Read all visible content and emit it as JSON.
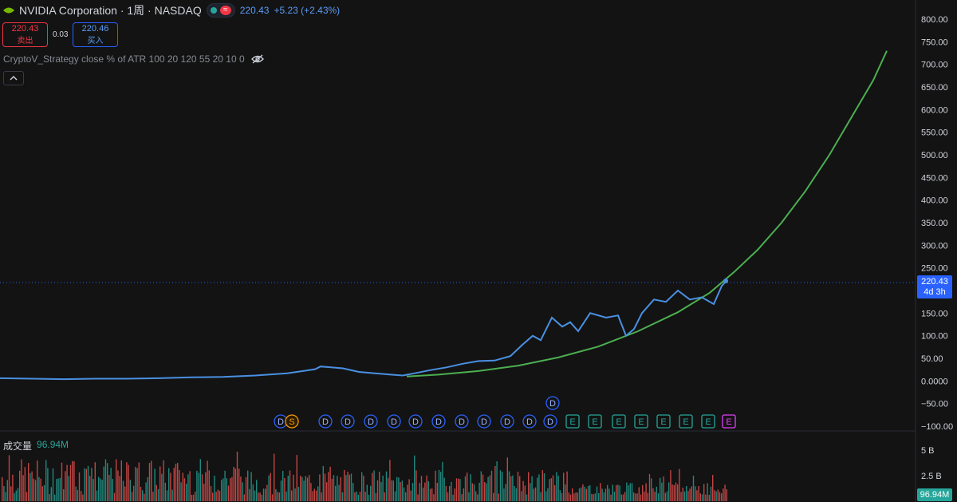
{
  "header": {
    "title": "NVIDIA Corporation · 1周 · NASDAQ",
    "wave_symbol": "≈",
    "price": "220.43",
    "change": "+5.23 (+2.43%)"
  },
  "quote": {
    "sell_price": "220.43",
    "sell_label": "卖出",
    "spread": "0.03",
    "buy_price": "220.46",
    "buy_label": "买入"
  },
  "indicator": {
    "label": "CryptoV_Strategy close % of ATR 100 20 120 55 20 10 0"
  },
  "volume": {
    "label": "成交量",
    "value": "96.94M",
    "axis_ticks": [
      "5 B",
      "2.5 B"
    ]
  },
  "price_tag": {
    "price": "220.43",
    "countdown": "4d 3h"
  },
  "colors": {
    "background": "#131313",
    "price_line": "#4a90e2",
    "curve": "#4caf50",
    "volume_up": "#26a69a",
    "volume_down": "#ef5350",
    "marker_d": "#2962ff",
    "marker_s": "#ff9800",
    "marker_e": "#26a69a",
    "marker_e_last": "#e040fb"
  },
  "chart_data": {
    "type": "line",
    "y_ticks": [
      "800.00",
      "750.00",
      "700.00",
      "650.00",
      "600.00",
      "550.00",
      "500.00",
      "450.00",
      "400.00",
      "350.00",
      "300.00",
      "250.00",
      "200.00",
      "150.00",
      "100.00",
      "50.00",
      "0.0000",
      "−50.00",
      "−100.00"
    ],
    "ylim": [
      -100,
      800
    ],
    "price_series": [
      [
        0,
        6
      ],
      [
        40,
        5
      ],
      [
        80,
        4
      ],
      [
        120,
        5
      ],
      [
        160,
        5
      ],
      [
        200,
        6
      ],
      [
        240,
        8
      ],
      [
        280,
        9
      ],
      [
        320,
        12
      ],
      [
        360,
        17
      ],
      [
        380,
        22
      ],
      [
        395,
        26
      ],
      [
        402,
        32
      ],
      [
        415,
        30
      ],
      [
        430,
        28
      ],
      [
        450,
        20
      ],
      [
        470,
        17
      ],
      [
        490,
        14
      ],
      [
        505,
        12
      ],
      [
        520,
        17
      ],
      [
        540,
        24
      ],
      [
        560,
        30
      ],
      [
        580,
        38
      ],
      [
        600,
        44
      ],
      [
        620,
        45
      ],
      [
        640,
        55
      ],
      [
        655,
        80
      ],
      [
        668,
        100
      ],
      [
        678,
        90
      ],
      [
        692,
        140
      ],
      [
        705,
        120
      ],
      [
        715,
        130
      ],
      [
        725,
        110
      ],
      [
        740,
        150
      ],
      [
        760,
        140
      ],
      [
        775,
        145
      ],
      [
        785,
        100
      ],
      [
        795,
        115
      ],
      [
        805,
        150
      ],
      [
        820,
        180
      ],
      [
        835,
        175
      ],
      [
        850,
        200
      ],
      [
        865,
        180
      ],
      [
        880,
        185
      ],
      [
        895,
        170
      ],
      [
        905,
        210
      ],
      [
        910,
        220
      ]
    ],
    "curve_series": [
      [
        510,
        10
      ],
      [
        550,
        14
      ],
      [
        600,
        22
      ],
      [
        650,
        34
      ],
      [
        700,
        52
      ],
      [
        750,
        76
      ],
      [
        800,
        110
      ],
      [
        850,
        152
      ],
      [
        890,
        195
      ],
      [
        920,
        240
      ],
      [
        950,
        290
      ],
      [
        980,
        350
      ],
      [
        1010,
        420
      ],
      [
        1040,
        500
      ],
      [
        1070,
        590
      ],
      [
        1095,
        665
      ],
      [
        1112,
        730
      ]
    ],
    "markers": [
      "D",
      "S",
      "D",
      "D",
      "D",
      "D",
      "D",
      "D",
      "D",
      "D",
      "D",
      "D",
      "D",
      "E",
      "E",
      "E",
      "E",
      "E",
      "E",
      "E",
      "E",
      "E",
      "E"
    ],
    "marker_extra": "D"
  }
}
